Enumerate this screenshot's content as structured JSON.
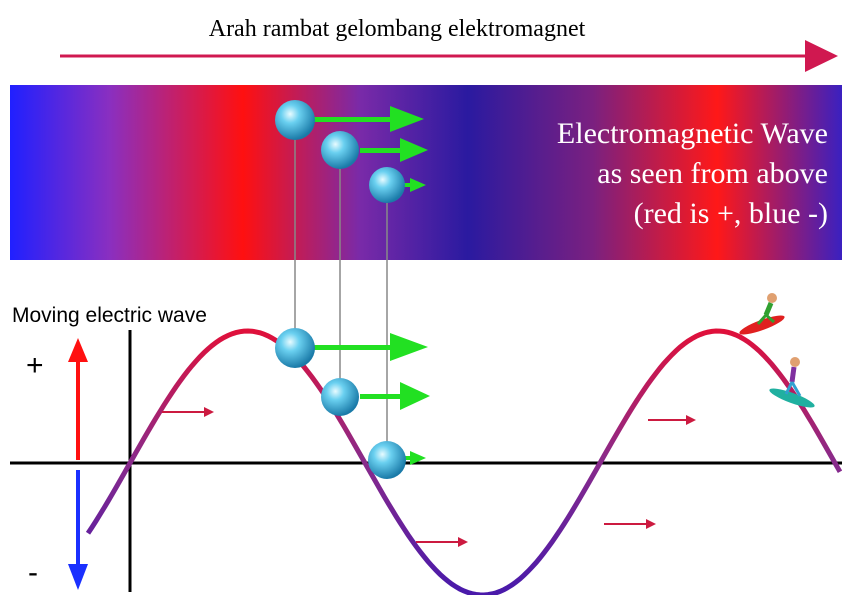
{
  "title": "Arah rambat gelombang elektromagnet",
  "band": {
    "lines": [
      "Electromagnetic Wave",
      "as seen from above",
      "(red is +, blue -)"
    ]
  },
  "wave": {
    "label": "Moving electric wave",
    "plus": "+",
    "minus": "-"
  }
}
